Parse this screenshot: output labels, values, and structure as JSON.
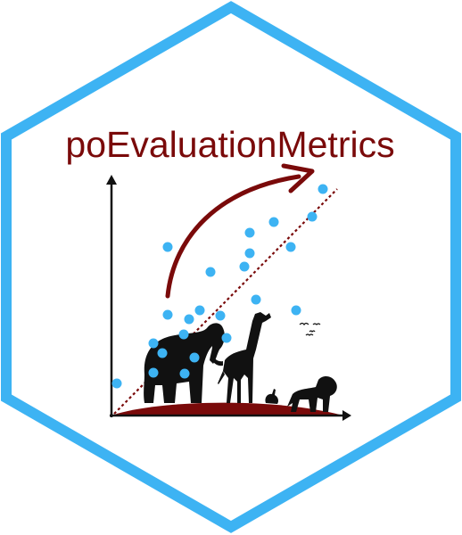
{
  "title": "poEvaluationMetrics",
  "icons": [
    "hexagon-border",
    "trend-arrow-icon",
    "elephant-icon",
    "giraffe-icon",
    "rabbit-icon",
    "lion-icon",
    "birds-icon"
  ],
  "colors": {
    "hex_border": "#3db3f3",
    "title": "#7a0a0a",
    "arrow": "#7a0a0a",
    "ground": "#7a0a0a",
    "points": "#3db3f3",
    "silhouettes": "#111111",
    "axes": "#111111"
  }
}
